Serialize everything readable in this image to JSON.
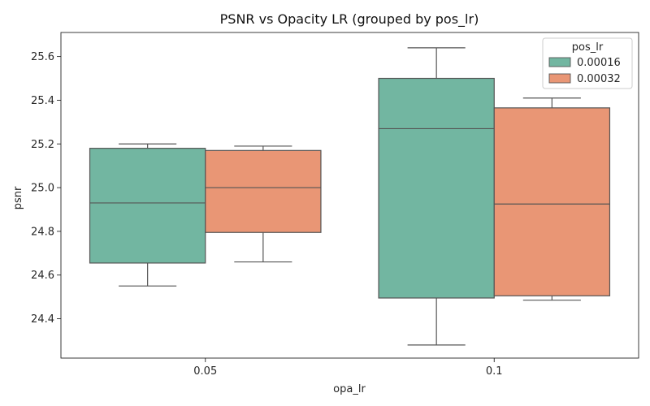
{
  "chart_data": {
    "type": "box",
    "title": "PSNR vs Opacity LR (grouped by pos_lr)",
    "xlabel": "opa_lr",
    "ylabel": "psnr",
    "categories": [
      "0.05",
      "0.1"
    ],
    "ylim": [
      24.22,
      25.71
    ],
    "yticks": [
      "24.4",
      "24.6",
      "24.8",
      "25.0",
      "25.2",
      "25.4",
      "25.6"
    ],
    "grid": false,
    "legend": {
      "title": "pos_lr",
      "placement": "top-right"
    },
    "series": [
      {
        "name": "0.00016",
        "color": "#72b6a1",
        "boxes": [
          {
            "category": "0.05",
            "min": 24.55,
            "q1": 24.655,
            "median": 24.93,
            "q3": 25.18,
            "max": 25.2
          },
          {
            "category": "0.1",
            "min": 24.28,
            "q1": 24.495,
            "median": 25.27,
            "q3": 25.5,
            "max": 25.64
          }
        ]
      },
      {
        "name": "0.00032",
        "color": "#e99675",
        "boxes": [
          {
            "category": "0.05",
            "min": 24.66,
            "q1": 24.795,
            "median": 25.0,
            "q3": 25.17,
            "max": 25.19
          },
          {
            "category": "0.1",
            "min": 24.485,
            "q1": 24.505,
            "median": 24.925,
            "q3": 25.365,
            "max": 25.41
          }
        ]
      }
    ]
  }
}
